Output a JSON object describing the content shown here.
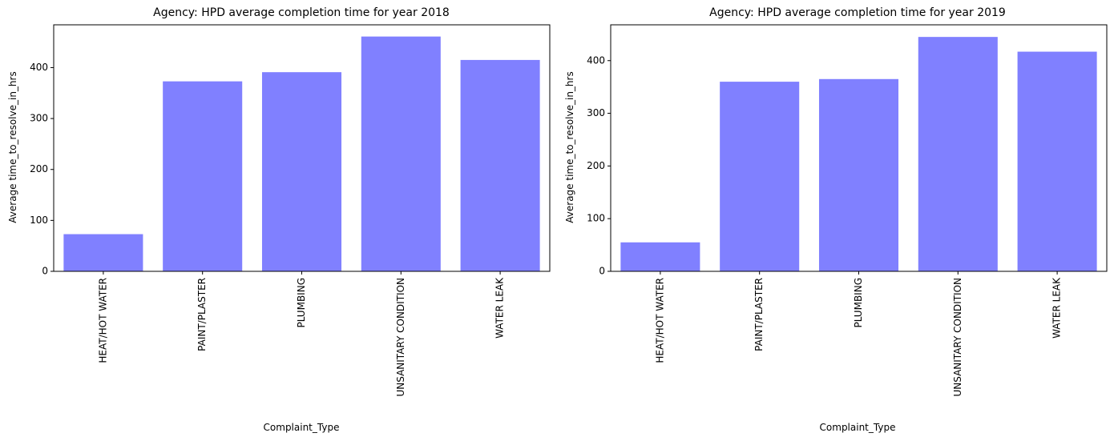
{
  "chart_data": [
    {
      "type": "bar",
      "title": "Agency: HPD average completion time for year 2018",
      "xlabel": "Complaint_Type",
      "ylabel": "Average time_to_resolve_in_hrs",
      "categories": [
        "HEAT/HOT WATER",
        "PAINT/PLASTER",
        "PLUMBING",
        "UNSANITARY CONDITION",
        "WATER LEAK"
      ],
      "values": [
        73,
        373,
        391,
        461,
        415
      ],
      "yticks": [
        0,
        100,
        200,
        300,
        400
      ],
      "ylim": [
        0,
        484
      ],
      "bar_color": "#8080ff",
      "grid": false
    },
    {
      "type": "bar",
      "title": "Agency: HPD average completion time for year 2019",
      "xlabel": "Complaint_Type",
      "ylabel": "Average time_to_resolve_in_hrs",
      "categories": [
        "HEAT/HOT WATER",
        "PAINT/PLASTER",
        "PLUMBING",
        "UNSANITARY CONDITION",
        "WATER LEAK"
      ],
      "values": [
        55,
        360,
        365,
        445,
        417
      ],
      "yticks": [
        0,
        100,
        200,
        300,
        400
      ],
      "ylim": [
        0,
        468
      ],
      "bar_color": "#8080ff",
      "grid": false
    }
  ]
}
